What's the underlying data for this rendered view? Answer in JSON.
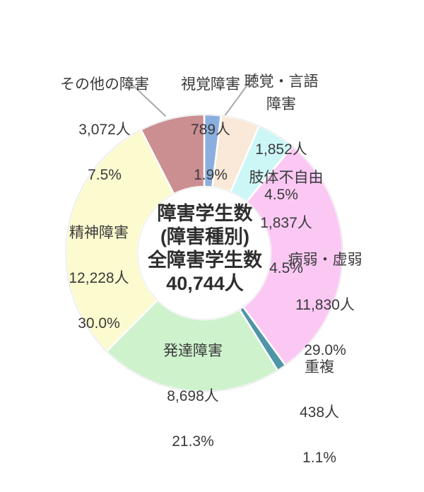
{
  "chart_data": {
    "type": "pie",
    "subtype": "donut",
    "title": "障害学生数(障害種別)",
    "center_label": "障害学生数\n(障害種別)\n全障害学生数\n40,744人",
    "total_value": 40744,
    "total_label": "40,744人",
    "start_angle_deg": 0,
    "direction": "clockwise",
    "hole_ratio": 0.48,
    "background": "#ffffff",
    "text_color": "#3a3a3a",
    "leader_line_color": "#a9a9a9",
    "segments": [
      {
        "key": "visual",
        "name": "視覚障害",
        "display_name": "視覚障害",
        "count": 789,
        "count_label": "789人",
        "percent": 1.9,
        "percent_label": "1.9%",
        "color": "#8aaede"
      },
      {
        "key": "hearing_language",
        "name": "聴覚・言語障害",
        "display_name": "聴覚・言語\n障害",
        "count": 1852,
        "count_label": "1,852人",
        "percent": 4.5,
        "percent_label": "4.5%",
        "color": "#fae8d8"
      },
      {
        "key": "physical",
        "name": "肢体不自由",
        "display_name": "肢体不自由",
        "count": 1837,
        "count_label": "1,837人",
        "percent": 4.5,
        "percent_label": "4.5%",
        "color": "#cdf6f7"
      },
      {
        "key": "illness",
        "name": "病弱・虚弱",
        "display_name": "病弱・虚弱",
        "count": 11830,
        "count_label": "11,830人",
        "percent": 29.0,
        "percent_label": "29.0%",
        "color": "#fbc8f4"
      },
      {
        "key": "multiple",
        "name": "重複",
        "display_name": "重複",
        "count": 438,
        "count_label": "438人",
        "percent": 1.1,
        "percent_label": "1.1%",
        "color": "#4d95a7"
      },
      {
        "key": "developmental",
        "name": "発達障害",
        "display_name": "発達障害",
        "count": 8698,
        "count_label": "8,698人",
        "percent": 21.3,
        "percent_label": "21.3%",
        "color": "#cdf2cc"
      },
      {
        "key": "mental",
        "name": "精神障害",
        "display_name": "精神障害",
        "count": 12228,
        "count_label": "12,228人",
        "percent": 30.0,
        "percent_label": "30.0%",
        "color": "#fcfacf"
      },
      {
        "key": "other",
        "name": "その他の障害",
        "display_name": "その他の障害",
        "count": 3072,
        "count_label": "3,072人",
        "percent": 7.5,
        "percent_label": "7.5%",
        "color": "#cb8e91"
      }
    ]
  }
}
